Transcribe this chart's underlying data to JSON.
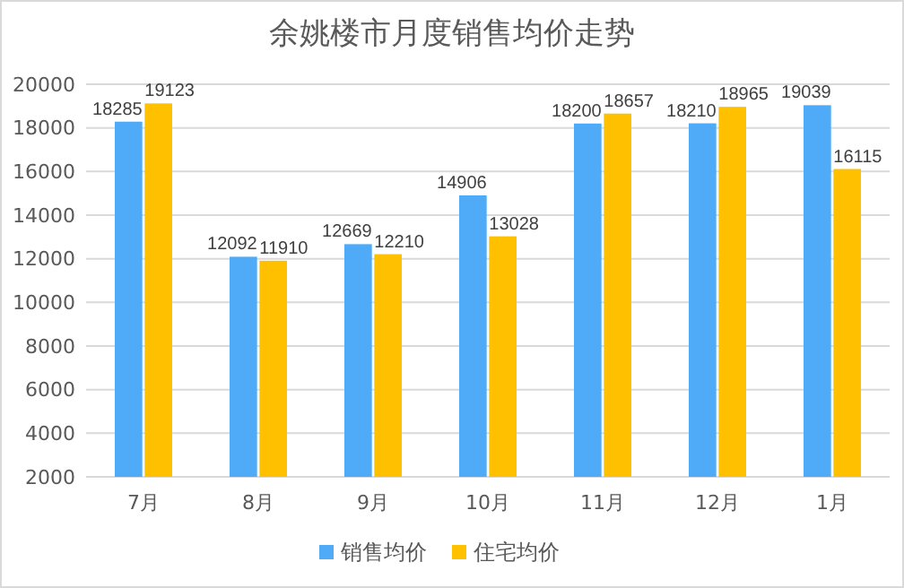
{
  "chart_data": {
    "type": "bar",
    "title": "余姚楼市月度销售均价走势",
    "categories": [
      "7月",
      "8月",
      "9月",
      "10月",
      "11月",
      "12月",
      "1月"
    ],
    "series": [
      {
        "name": "销售均价",
        "color": "#4fabf7",
        "values": [
          18285,
          12092,
          12669,
          14906,
          18200,
          18210,
          19039
        ]
      },
      {
        "name": "住宅均价",
        "color": "#ffc000",
        "values": [
          19123,
          11910,
          12210,
          13028,
          18657,
          18965,
          16115
        ]
      }
    ],
    "ylim": [
      2000,
      20000
    ],
    "yticks": [
      2000,
      4000,
      6000,
      8000,
      10000,
      12000,
      14000,
      16000,
      18000,
      20000
    ],
    "grid": "y",
    "legend": "bottom",
    "data_labels": true
  }
}
